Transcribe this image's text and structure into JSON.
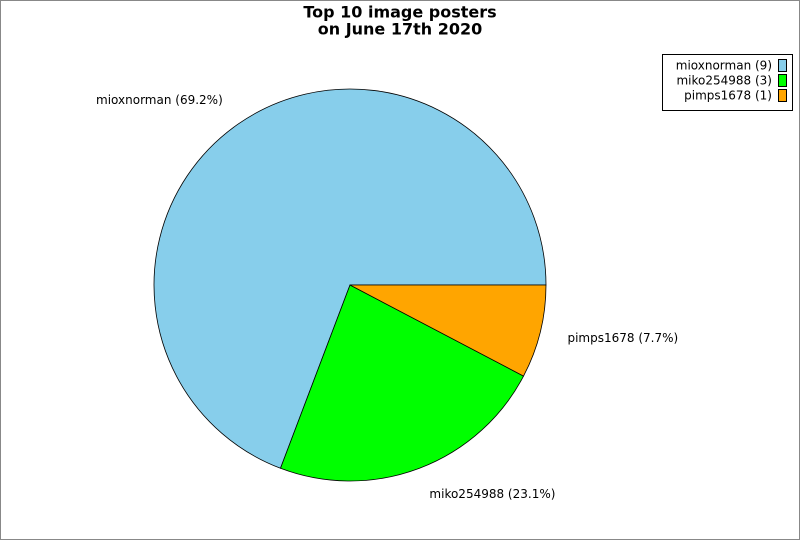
{
  "chart_data": {
    "type": "pie",
    "title": [
      "Top 10 image posters",
      "on June 17th 2020"
    ],
    "values": [
      9,
      3,
      1
    ],
    "value_labels": [
      "mioxnorman (9)",
      "miko254988 (3)",
      "pimps1678 (1)"
    ],
    "percents": [
      69.2,
      23.1,
      7.7
    ],
    "percent_labels": [
      "mioxnorman (69.2%)",
      "miko254988 (23.1%)",
      "pimps1678 (7.7%)"
    ],
    "colors": [
      "#87ceeb",
      "#00ff00",
      "#ffa500"
    ],
    "legend": "upper right"
  }
}
